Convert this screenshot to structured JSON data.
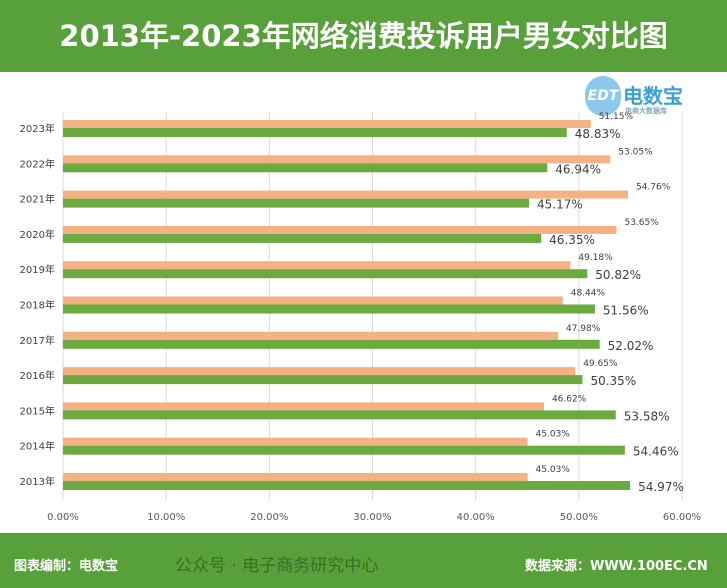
{
  "title": "2013年-2023年网络消费投诉用户男女对比图",
  "logo": {
    "brand": "电数宝",
    "sub": "电商大数据库",
    "mark": "EDT"
  },
  "footer": {
    "editor": "图表编制：电数宝",
    "source": "数据来源：WWW.100EC.CN",
    "watermark": "公众号 · 电子商务研究中心"
  },
  "chart_data": {
    "type": "bar",
    "orientation": "horizontal",
    "categories": [
      "2023年",
      "2022年",
      "2021年",
      "2020年",
      "2019年",
      "2018年",
      "2017年",
      "2016年",
      "2015年",
      "2014年",
      "2013年"
    ],
    "series": [
      {
        "color": "#f4b183",
        "values": [
          51.15,
          53.05,
          54.76,
          53.65,
          49.18,
          48.44,
          47.98,
          49.65,
          46.62,
          45.03,
          45.03
        ],
        "labels": [
          "51.15%",
          "53.05%",
          "54.76%",
          "53.65%",
          "49.18%",
          "48.44%",
          "47.98%",
          "49.65%",
          "46.62%",
          "45.03%",
          "45.03%"
        ]
      },
      {
        "color": "#6aaa3e",
        "values": [
          48.83,
          46.94,
          45.17,
          46.35,
          50.82,
          51.56,
          52.02,
          50.35,
          53.58,
          54.46,
          54.97
        ],
        "labels": [
          "48.83%",
          "46.94%",
          "45.17%",
          "46.35%",
          "50.82%",
          "51.56%",
          "52.02%",
          "50.35%",
          "53.58%",
          "54.46%",
          "54.97%"
        ]
      }
    ],
    "xlim": [
      0,
      60
    ],
    "xticks": [
      "0.00%",
      "10.00%",
      "20.00%",
      "30.00%",
      "40.00%",
      "50.00%",
      "60.00%"
    ],
    "grid": true,
    "legend": "none"
  }
}
